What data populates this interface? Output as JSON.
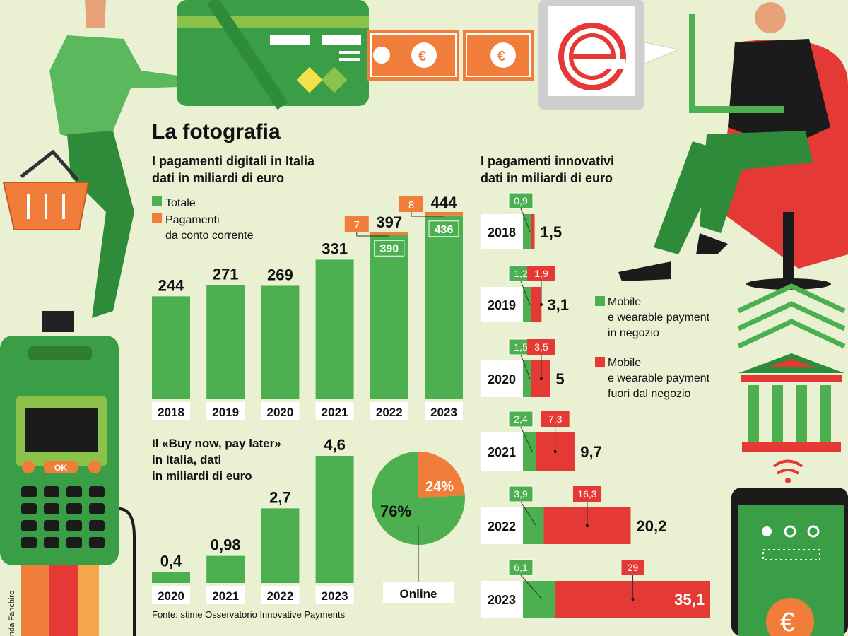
{
  "colors": {
    "background": "#e9f1d2",
    "green": "#4caf50",
    "dark_green": "#2e7d32",
    "orange": "#f07e3a",
    "red": "#e53935",
    "white_tag": "#ffffff"
  },
  "page": {
    "title": "La fotografia",
    "source": "Fonte: stime Osservatorio Innovative Payments",
    "credit": "nda Fanchiro"
  },
  "chart_data": [
    {
      "id": "digital",
      "type": "bar",
      "title": "I pagamenti digitali in Italia",
      "subtitle": "dati in miliardi di euro",
      "legend": [
        "Totale",
        "Pagamenti da conto corrente"
      ],
      "legend_placement": "top-left",
      "categories": [
        "2018",
        "2019",
        "2020",
        "2021",
        "2022",
        "2023"
      ],
      "series": [
        {
          "name": "Totale",
          "values": [
            244,
            271,
            269,
            331,
            397,
            444
          ]
        },
        {
          "name": "Pagamenti da conto corrente",
          "values": [
            null,
            null,
            null,
            null,
            7,
            8
          ]
        }
      ],
      "inner_labels": [
        null,
        null,
        null,
        null,
        390,
        436
      ],
      "ylim": [
        0,
        460
      ]
    },
    {
      "id": "bnpl",
      "type": "bar",
      "title": "Il «Buy now, pay later» in Italia, dati in miliardi di euro",
      "categories": [
        "2020",
        "2021",
        "2022",
        "2023"
      ],
      "values": [
        0.4,
        0.98,
        2.7,
        4.6
      ],
      "value_labels": [
        "0,4",
        "0,98",
        "2,7",
        "4,6"
      ],
      "ylim": [
        0,
        4.8
      ]
    },
    {
      "id": "online_pie",
      "type": "pie",
      "label": "Online",
      "slices": [
        {
          "label": "76%",
          "value": 76,
          "color": "#4caf50"
        },
        {
          "label": "24%",
          "value": 24,
          "color": "#f07e3a"
        }
      ]
    },
    {
      "id": "innovative",
      "type": "bar",
      "orientation": "horizontal",
      "title": "I pagamenti innovativi",
      "subtitle": "dati in miliardi di euro",
      "categories": [
        "2018",
        "2019",
        "2020",
        "2021",
        "2022",
        "2023"
      ],
      "series": [
        {
          "name": "Mobile e wearable payment in negozio",
          "values": [
            0.9,
            1.2,
            1.5,
            2.4,
            3.9,
            6.1
          ],
          "labels": [
            "0,9",
            "1,2",
            "1,5",
            "2,4",
            "3,9",
            "6,1"
          ]
        },
        {
          "name": "Mobile e wearable payment fuori dal negozio",
          "values": [
            0.6,
            1.9,
            3.5,
            7.3,
            16.3,
            29
          ],
          "labels": [
            "",
            "1,9",
            "3,5",
            "7,3",
            "16,3",
            "29"
          ]
        }
      ],
      "totals": [
        1.5,
        3.1,
        5,
        9.7,
        20.2,
        35.1
      ],
      "total_labels": [
        "1,5",
        "3,1",
        "5",
        "9,7",
        "20,2",
        "35,1"
      ],
      "legend": [
        "Mobile",
        "e wearable payment",
        "in negozio",
        "Mobile",
        "e wearable payment",
        "fuori dal negozio"
      ],
      "xlim": [
        0,
        36
      ]
    }
  ]
}
